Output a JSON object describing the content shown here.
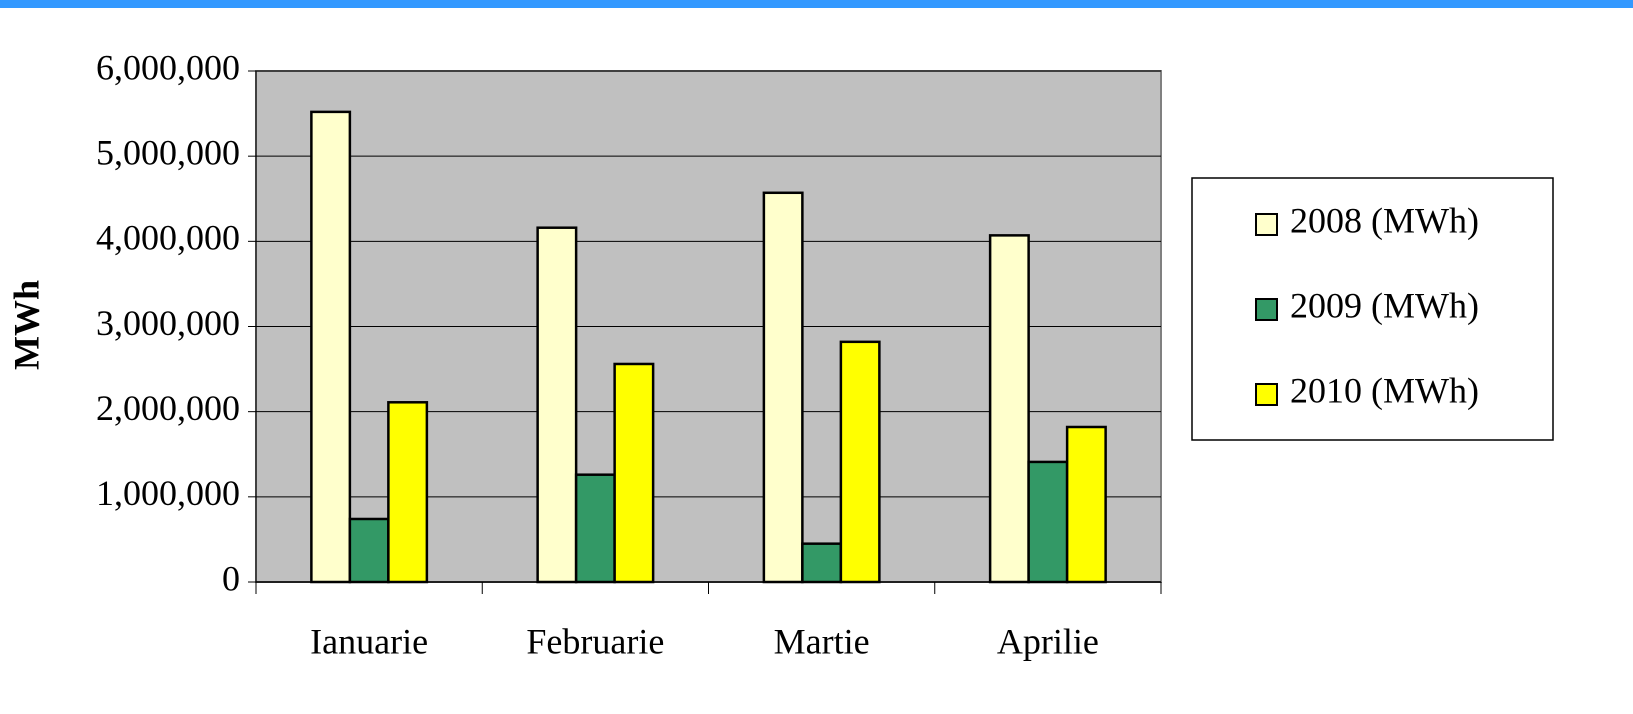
{
  "chart_data": {
    "type": "bar",
    "ylabel": "MWh",
    "categories": [
      "Ianuarie",
      "Februarie",
      "Martie",
      "Aprilie"
    ],
    "series": [
      {
        "name": "2008 (MWh)",
        "color": "#ffffcc",
        "values": [
          5520000,
          4160000,
          4570000,
          4070000
        ]
      },
      {
        "name": "2009 (MWh)",
        "color": "#339966",
        "values": [
          740000,
          1260000,
          450000,
          1410000
        ]
      },
      {
        "name": "2010 (MWh)",
        "color": "#ffff00",
        "values": [
          2110000,
          2560000,
          2820000,
          1820000
        ]
      }
    ],
    "ylim": [
      0,
      6000000
    ],
    "yticks": [
      0,
      {
        "value": 1000000,
        "label": "1,000,000"
      },
      {
        "value": 2000000,
        "label": "2,000,000"
      },
      {
        "value": 3000000,
        "label": "3,000,000"
      },
      {
        "value": 4000000,
        "label": "4,000,000"
      },
      {
        "value": 5000000,
        "label": "5,000,000"
      },
      {
        "value": 6000000,
        "label": "6,000,000"
      }
    ],
    "grid": true,
    "legend": "right",
    "plot_background": "#c0c0c0"
  }
}
